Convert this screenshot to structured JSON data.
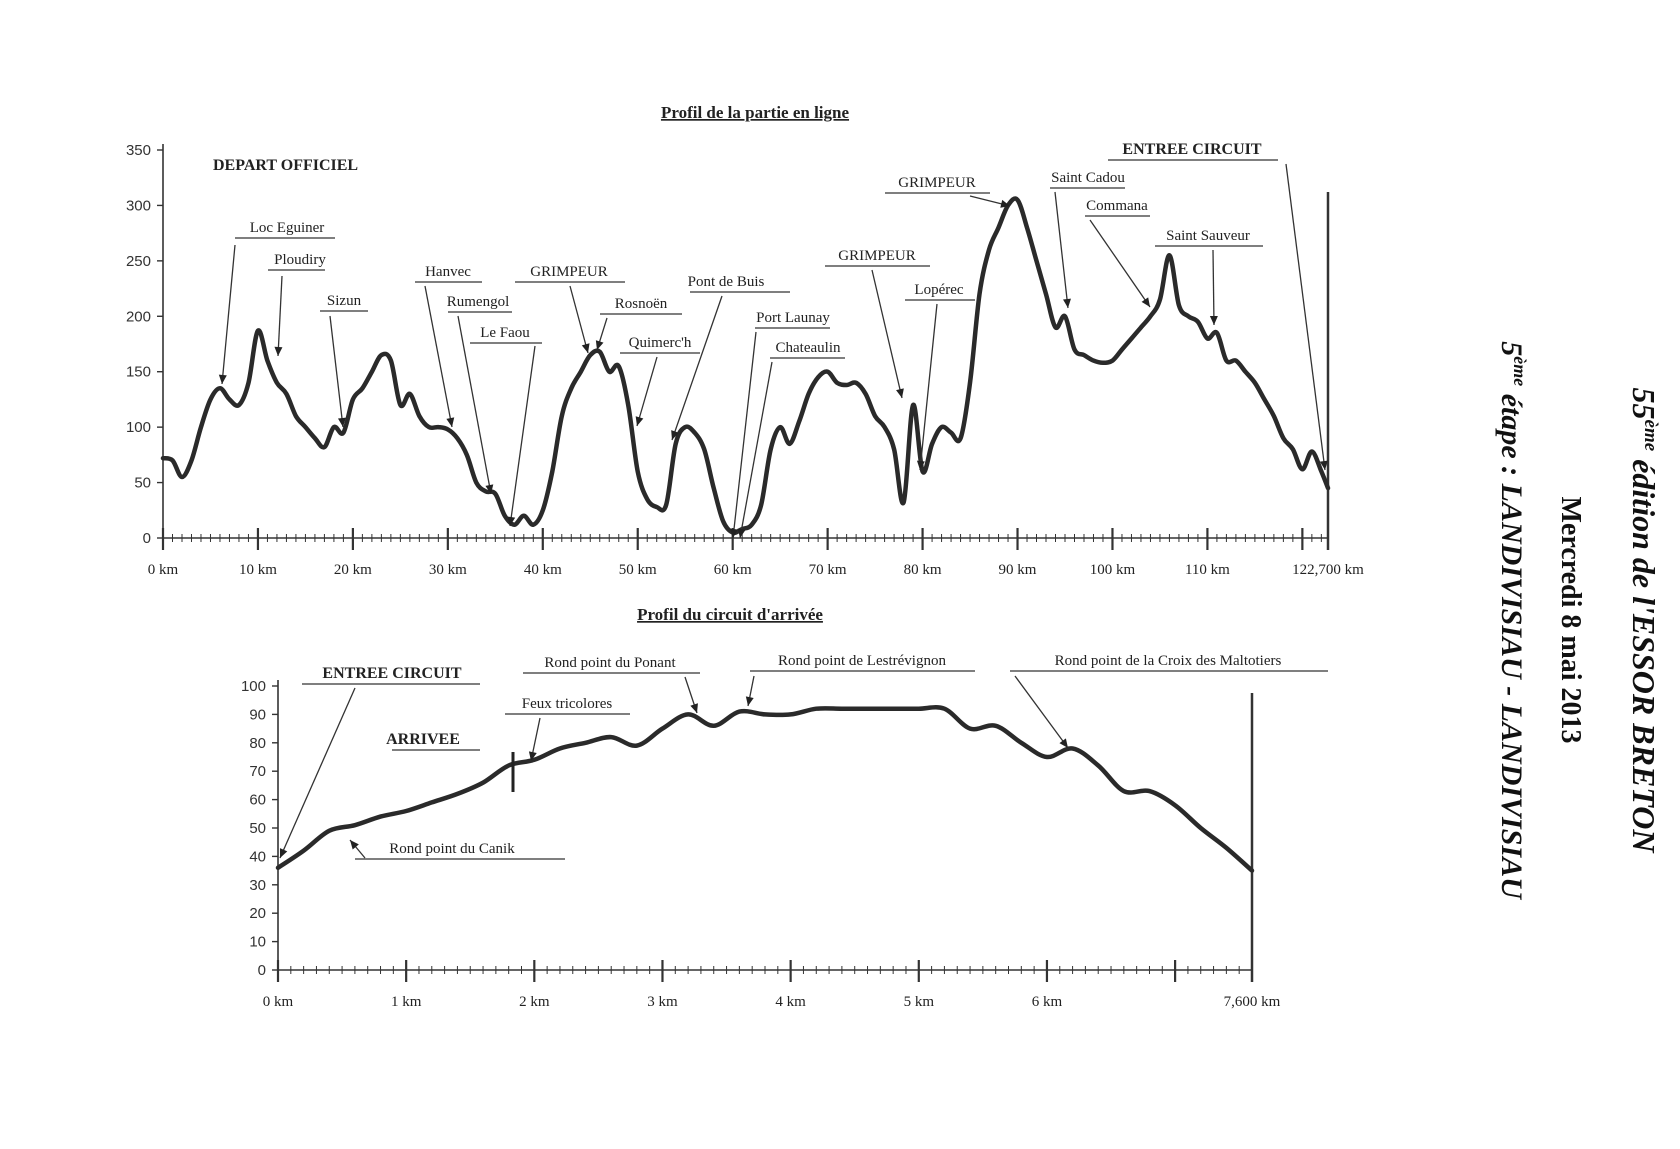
{
  "side_title": {
    "line1_prefix": "55",
    "line1_sup": "ème",
    "line1_rest": " édition de l'ESSOR BRETON",
    "line2": "Mercredi 8 mai 2013",
    "line3_prefix": "5",
    "line3_sup": "ème",
    "line3_rest": " étape : LANDIVISIAU - LANDIVISIAU"
  },
  "chart_data": [
    {
      "type": "line",
      "title": "Profil de la partie en ligne",
      "xlabel": "",
      "ylabel": "",
      "xlim": [
        0,
        122.7
      ],
      "ylim": [
        0,
        350
      ],
      "y_ticks": [
        "0",
        "50",
        "100",
        "150",
        "200",
        "250",
        "300",
        "350"
      ],
      "x_tick_labels": [
        {
          "x": 0,
          "label": "0 km"
        },
        {
          "x": 10,
          "label": "10 km"
        },
        {
          "x": 20,
          "label": "20 km"
        },
        {
          "x": 30,
          "label": "30 km"
        },
        {
          "x": 40,
          "label": "40 km"
        },
        {
          "x": 50,
          "label": "50 km"
        },
        {
          "x": 60,
          "label": "60 km"
        },
        {
          "x": 70,
          "label": "70 km"
        },
        {
          "x": 80,
          "label": "80 km"
        },
        {
          "x": 90,
          "label": "90 km"
        },
        {
          "x": 100,
          "label": "100 km"
        },
        {
          "x": 110,
          "label": "110 km"
        },
        {
          "x": 122.7,
          "label": "122,700 km"
        }
      ],
      "grid": false,
      "series": [
        {
          "x": [
            0,
            1,
            2,
            3,
            4,
            5,
            6,
            7,
            8,
            9,
            10,
            11,
            12,
            13,
            14,
            15,
            16,
            17,
            18,
            19,
            20,
            21,
            22,
            23,
            24,
            25,
            26,
            27,
            28,
            29,
            30,
            31,
            32,
            33,
            34,
            35,
            36,
            37,
            38,
            39,
            40,
            41,
            42,
            43,
            44,
            45,
            46,
            47,
            48,
            49,
            50,
            51,
            52,
            53,
            54,
            55,
            56,
            57,
            58,
            59,
            60,
            61,
            62,
            63,
            64,
            65,
            66,
            67,
            68,
            69,
            70,
            71,
            72,
            73,
            74,
            75,
            76,
            77,
            78,
            79,
            80,
            81,
            82,
            83,
            84,
            85,
            86,
            87,
            88,
            89,
            90,
            91,
            92,
            93,
            94,
            95,
            96,
            97,
            98,
            99,
            100,
            101,
            102,
            103,
            104,
            105,
            106,
            107,
            108,
            109,
            110,
            111,
            112,
            113,
            114,
            115,
            116,
            117,
            118,
            119,
            120,
            121,
            122,
            122.7
          ],
          "y": [
            72,
            70,
            55,
            70,
            100,
            125,
            135,
            125,
            120,
            140,
            187,
            160,
            140,
            130,
            110,
            100,
            90,
            82,
            100,
            95,
            125,
            135,
            150,
            165,
            160,
            120,
            130,
            110,
            100,
            100,
            98,
            90,
            75,
            50,
            42,
            40,
            20,
            12,
            20,
            12,
            25,
            60,
            110,
            135,
            150,
            165,
            168,
            150,
            155,
            120,
            60,
            35,
            28,
            30,
            85,
            100,
            95,
            80,
            45,
            15,
            5,
            8,
            12,
            30,
            80,
            100,
            85,
            105,
            130,
            145,
            150,
            140,
            138,
            140,
            130,
            110,
            100,
            80,
            32,
            120,
            60,
            85,
            100,
            95,
            90,
            140,
            220,
            260,
            280,
            300,
            305,
            280,
            250,
            220,
            190,
            200,
            170,
            165,
            160,
            158,
            160,
            170,
            180,
            190,
            200,
            215,
            255,
            210,
            200,
            195,
            180,
            185,
            160,
            160,
            150,
            140,
            125,
            110,
            90,
            80,
            62,
            78,
            60,
            45
          ]
        }
      ],
      "annotations": [
        {
          "text": "DEPART OFFICIEL",
          "bold": true
        },
        {
          "text": "Loc Eguiner",
          "x": 6.5
        },
        {
          "text": "Ploudiry",
          "x": 12.2
        },
        {
          "text": "Sizun",
          "x": 19.5
        },
        {
          "text": "Hanvec",
          "x": 30.5
        },
        {
          "text": "Rumengol",
          "x": 34.8
        },
        {
          "text": "Le Faou",
          "x": 37
        },
        {
          "text": "GRIMPEUR",
          "x": 45
        },
        {
          "text": "Rosnoën",
          "x": 46.5
        },
        {
          "text": "Quimerc'h",
          "x": 50.5
        },
        {
          "text": "Pont de Buis",
          "x": 53.5
        },
        {
          "text": "Port Launay",
          "x": 60.5
        },
        {
          "text": "Chateaulin",
          "x": 61.8
        },
        {
          "text": "GRIMPEUR",
          "x": 78
        },
        {
          "text": "Lopérec",
          "x": 80.5
        },
        {
          "text": "GRIMPEUR",
          "x": 89.5
        },
        {
          "text": "Saint Cadou",
          "x": 96
        },
        {
          "text": "Commana",
          "x": 104.5
        },
        {
          "text": "Saint Sauveur",
          "x": 111
        },
        {
          "text": "ENTREE CIRCUIT",
          "x": 122.5,
          "bold": true
        }
      ]
    },
    {
      "type": "line",
      "title": "Profil du circuit d'arrivée",
      "xlabel": "",
      "ylabel": "",
      "xlim": [
        0,
        7.6
      ],
      "ylim": [
        0,
        100
      ],
      "y_ticks": [
        "0",
        "10",
        "20",
        "30",
        "40",
        "50",
        "60",
        "70",
        "80",
        "90",
        "100"
      ],
      "x_tick_labels": [
        {
          "x": 0,
          "label": "0 km"
        },
        {
          "x": 1,
          "label": "1 km"
        },
        {
          "x": 2,
          "label": "2 km"
        },
        {
          "x": 3,
          "label": "3 km"
        },
        {
          "x": 4,
          "label": "4 km"
        },
        {
          "x": 5,
          "label": "5 km"
        },
        {
          "x": 6,
          "label": "6 km"
        },
        {
          "x": 7.6,
          "label": "7,600 km"
        }
      ],
      "grid": false,
      "series": [
        {
          "x": [
            0,
            0.2,
            0.4,
            0.6,
            0.8,
            1.0,
            1.2,
            1.4,
            1.6,
            1.8,
            2.0,
            2.2,
            2.4,
            2.6,
            2.8,
            3.0,
            3.2,
            3.4,
            3.6,
            3.8,
            4.0,
            4.2,
            4.4,
            4.6,
            4.8,
            5.0,
            5.2,
            5.4,
            5.6,
            5.8,
            6.0,
            6.2,
            6.4,
            6.6,
            6.8,
            7.0,
            7.2,
            7.4,
            7.6
          ],
          "y": [
            36,
            42,
            49,
            51,
            54,
            56,
            59,
            62,
            66,
            72,
            74,
            78,
            80,
            82,
            79,
            85,
            90,
            86,
            91,
            90,
            90,
            92,
            92,
            92,
            92,
            92,
            92,
            85,
            86,
            80,
            75,
            78,
            72,
            63,
            63,
            58,
            50,
            43,
            35
          ]
        }
      ],
      "annotations": [
        {
          "text": "ENTREE CIRCUIT",
          "x": 0.05,
          "bold": true
        },
        {
          "text": "ARRIVEE",
          "x": 1.83,
          "bold": true
        },
        {
          "text": "Rond point du Canik",
          "x": 0.55
        },
        {
          "text": "Feux tricolores",
          "x": 2.0
        },
        {
          "text": "Rond point du Ponant",
          "x": 3.25
        },
        {
          "text": "Rond point de Lestrévignon",
          "x": 3.65
        },
        {
          "text": "Rond point de la Croix des Maltotiers",
          "x": 6.1
        }
      ]
    }
  ]
}
